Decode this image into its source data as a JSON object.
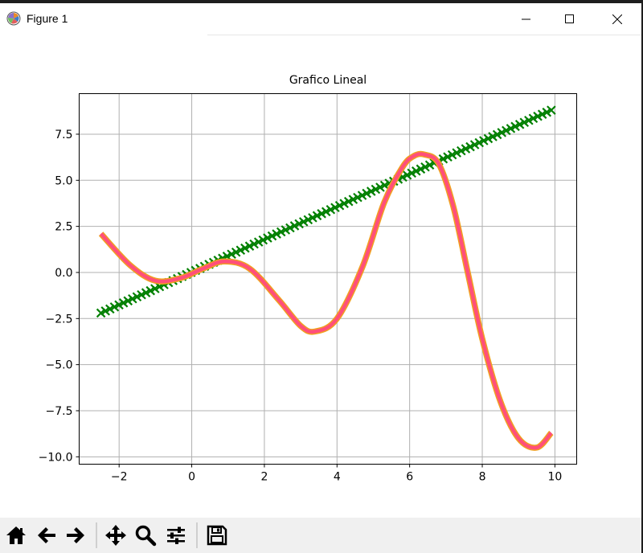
{
  "window": {
    "title": "Figure 1"
  },
  "chart_data": {
    "type": "line",
    "title": "Grafico Lineal",
    "xlabel": "",
    "ylabel": "",
    "xlim": [
      -3.1,
      10.6
    ],
    "ylim": [
      -10.4,
      9.7
    ],
    "xticks": [
      -2,
      0,
      2,
      4,
      6,
      8,
      10
    ],
    "xtick_labels": [
      "−2",
      "0",
      "2",
      "4",
      "6",
      "8",
      "10"
    ],
    "yticks": [
      7.5,
      5.0,
      2.5,
      0.0,
      -2.5,
      -5.0,
      -7.5,
      -10.0
    ],
    "ytick_labels": [
      "7.5",
      "5.0",
      "2.5",
      "0.0",
      "−2.5",
      "−5.0",
      "−7.5",
      "−10.0"
    ],
    "grid": true,
    "series": [
      {
        "color": "#008000",
        "marker": "x",
        "linestyle": "none",
        "x": [
          -2.5,
          9.9
        ],
        "y": [
          -2.2,
          8.8
        ]
      },
      {
        "color": "#ff4f7a",
        "edge_color": "#f0a020",
        "x": [
          -2.5,
          -1.7,
          -1.0,
          -0.3,
          0.3,
          0.9,
          1.6,
          2.4,
          3.0,
          3.4,
          4.0,
          4.7,
          5.3,
          5.8,
          6.1,
          6.4,
          6.8,
          7.2,
          7.6,
          8.0,
          8.5,
          9.0,
          9.5,
          9.9
        ],
        "y": [
          2.1,
          0.4,
          -0.45,
          -0.3,
          0.2,
          0.6,
          0.2,
          -1.5,
          -2.9,
          -3.2,
          -2.5,
          0.3,
          3.8,
          5.7,
          6.3,
          6.4,
          5.9,
          3.6,
          0.0,
          -3.6,
          -7.0,
          -9.0,
          -9.5,
          -8.7
        ]
      }
    ]
  },
  "toolbar": {
    "items": [
      {
        "name": "home-icon"
      },
      {
        "name": "back-arrow-icon"
      },
      {
        "name": "forward-arrow-icon"
      },
      {
        "name": "pan-icon"
      },
      {
        "name": "zoom-icon"
      },
      {
        "name": "configure-subplots-icon"
      },
      {
        "name": "save-icon"
      }
    ]
  }
}
